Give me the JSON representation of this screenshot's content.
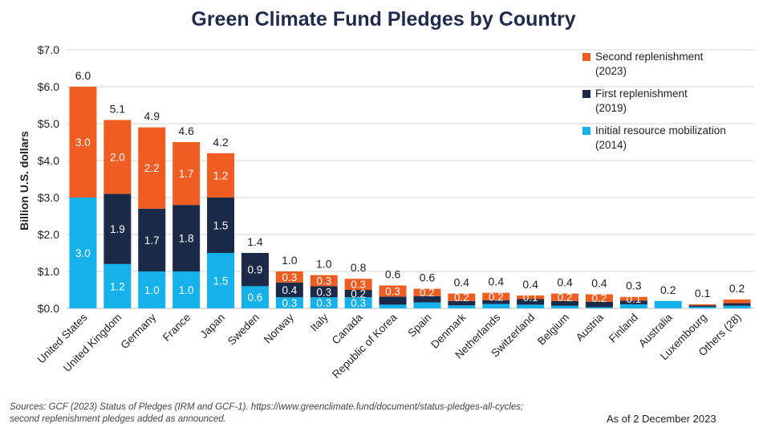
{
  "chart_data": {
    "type": "bar",
    "stacked": true,
    "title": "Green Climate Fund Pledges by Country",
    "ylabel": "Billion U.S. dollars",
    "xlabel": "",
    "ylim": [
      0,
      7
    ],
    "yticks": [
      "$0.0",
      "$1.0",
      "$2.0",
      "$3.0",
      "$4.0",
      "$5.0",
      "$6.0",
      "$7.0"
    ],
    "grid": true,
    "legend_position": "top-right",
    "categories": [
      "United States",
      "United Kingdom",
      "Germany",
      "France",
      "Japan",
      "Sweden",
      "Norway",
      "Italy",
      "Canada",
      "Republic of Korea",
      "Spain",
      "Denmark",
      "Netherlands",
      "Switzerland",
      "Belgium",
      "Austria",
      "Finland",
      "Australia",
      "Luxembourg",
      "Others (28)"
    ],
    "series": [
      {
        "name": "Initial resource mobilization (2014)",
        "color": "#14b1ea",
        "values": [
          3.0,
          1.2,
          1.0,
          1.0,
          1.5,
          0.6,
          0.3,
          0.3,
          0.3,
          0.1,
          0.16,
          0.08,
          0.12,
          0.1,
          0.07,
          0.03,
          0.11,
          0.2,
          0.04,
          0.07
        ],
        "labels": [
          "3.0",
          "1.2",
          "1.0",
          "1.0",
          "1.5",
          "0.6",
          "0.3",
          "0.3",
          "0.3",
          "",
          "",
          "",
          "",
          "",
          "",
          "",
          "",
          "",
          "",
          ""
        ]
      },
      {
        "name": "First replenishment (2019)",
        "color": "#1c2a4a",
        "values": [
          0.0,
          1.9,
          1.7,
          1.8,
          1.5,
          0.9,
          0.4,
          0.3,
          0.2,
          0.22,
          0.17,
          0.12,
          0.1,
          0.15,
          0.13,
          0.15,
          0.1,
          0.0,
          0.04,
          0.07
        ],
        "labels": [
          "",
          "1.9",
          "1.7",
          "1.8",
          "1.5",
          "0.9",
          "0.4",
          "0.3",
          "0.2",
          "",
          "",
          "",
          "",
          "",
          "",
          "",
          "",
          "",
          "",
          ""
        ]
      },
      {
        "name": "Second replenishment (2023)",
        "color": "#ef5d23",
        "values": [
          3.0,
          2.0,
          2.2,
          1.7,
          1.2,
          0.0,
          0.3,
          0.3,
          0.3,
          0.3,
          0.2,
          0.2,
          0.2,
          0.1,
          0.2,
          0.2,
          0.1,
          0.0,
          0.03,
          0.1
        ],
        "labels": [
          "3.0",
          "2.0",
          "2.2",
          "1.7",
          "1.2",
          "",
          "0.3",
          "0.3",
          "0.3",
          "0.3",
          "0.2",
          "0.2",
          "0.2",
          "0.1",
          "0.2",
          "0.2",
          "0.1",
          "",
          "",
          ""
        ]
      }
    ],
    "totals": [
      "6.0",
      "5.1",
      "4.9",
      "4.6",
      "4.2",
      "1.4",
      "1.0",
      "1.0",
      "0.8",
      "0.6",
      "0.6",
      "0.4",
      "0.4",
      "0.4",
      "0.4",
      "0.4",
      "0.3",
      "0.2",
      "0.1",
      "0.2"
    ]
  },
  "legend": {
    "items": [
      {
        "label_line1": "Second replenishment",
        "label_line2": "(2023)",
        "color": "#ef5d23"
      },
      {
        "label_line1": "First replenishment",
        "label_line2": "(2019)",
        "color": "#1c2a4a"
      },
      {
        "label_line1": "Initial resource mobilization",
        "label_line2": "(2014)",
        "color": "#14b1ea"
      }
    ]
  },
  "footer": {
    "source_line1": "Sources: GCF (2023) Status of Pledges (IRM and GCF-1). https://www.greenclimate.fund/document/status-pledges-all-cycles;",
    "source_line2": "second replenishment pledges added as announced.",
    "as_of": "As of 2 December 2023"
  }
}
